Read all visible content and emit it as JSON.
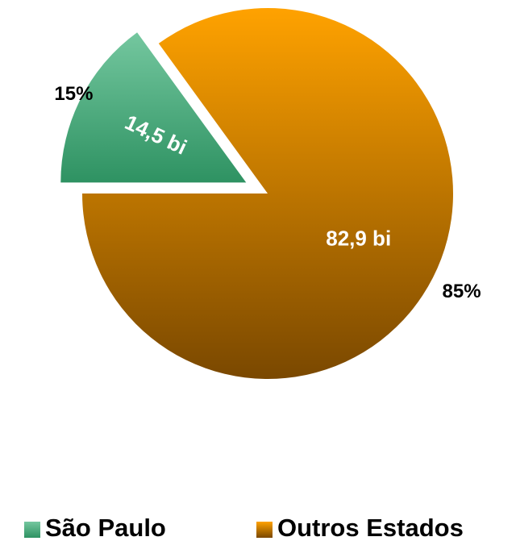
{
  "chart_data": {
    "type": "pie",
    "categories": [
      "São Paulo",
      "Outros Estados"
    ],
    "values": [
      14.5,
      82.9
    ],
    "value_labels": [
      "14,5 bi",
      "82,9 bi"
    ],
    "percents": [
      15,
      85
    ],
    "percent_labels": [
      "15%",
      "85%"
    ],
    "colors": [
      [
        "#74c79f",
        "#2e9262"
      ],
      [
        "#ffa200",
        "#7a4800"
      ]
    ],
    "exploded": [
      true,
      false
    ]
  }
}
